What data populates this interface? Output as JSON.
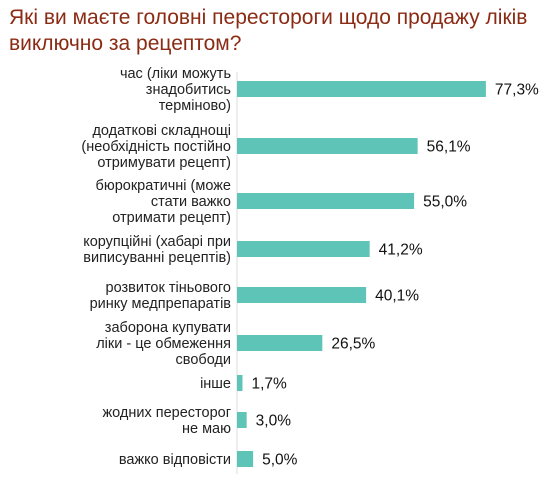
{
  "chart_data": {
    "type": "bar",
    "orientation": "horizontal",
    "title": "Які ви маєте головні перестороги щодо продажу ліків виключно за рецептом?",
    "categories": [
      [
        "час (ліки можуть",
        "знадобитись",
        "терміново)"
      ],
      [
        "додаткові складнощі",
        "(необхідність постійно",
        "отримувати рецепт)"
      ],
      [
        "бюрократичні (може",
        "стати важко",
        "отримати рецепт)"
      ],
      [
        "корупційні (хабарі при",
        "виписуванні рецептів)"
      ],
      [
        "розвиток тіньового",
        "ринку медпрепаратів"
      ],
      [
        "заборона купувати",
        "ліки - це обмеження",
        "свободи"
      ],
      [
        "інше"
      ],
      [
        "жодних пересторог",
        "не маю"
      ],
      [
        "важко відповісти"
      ]
    ],
    "values": [
      77.3,
      56.1,
      55.0,
      41.2,
      40.1,
      26.5,
      1.7,
      3.0,
      5.0
    ],
    "value_labels": [
      "77,3%",
      "56,1%",
      "55,0%",
      "41,2%",
      "40,1%",
      "26,5%",
      "1,7%",
      "3,0%",
      "5,0%"
    ],
    "bar_color": "#5fc4b8",
    "title_color": "#8b2b14",
    "grid": false,
    "legend": "none"
  }
}
